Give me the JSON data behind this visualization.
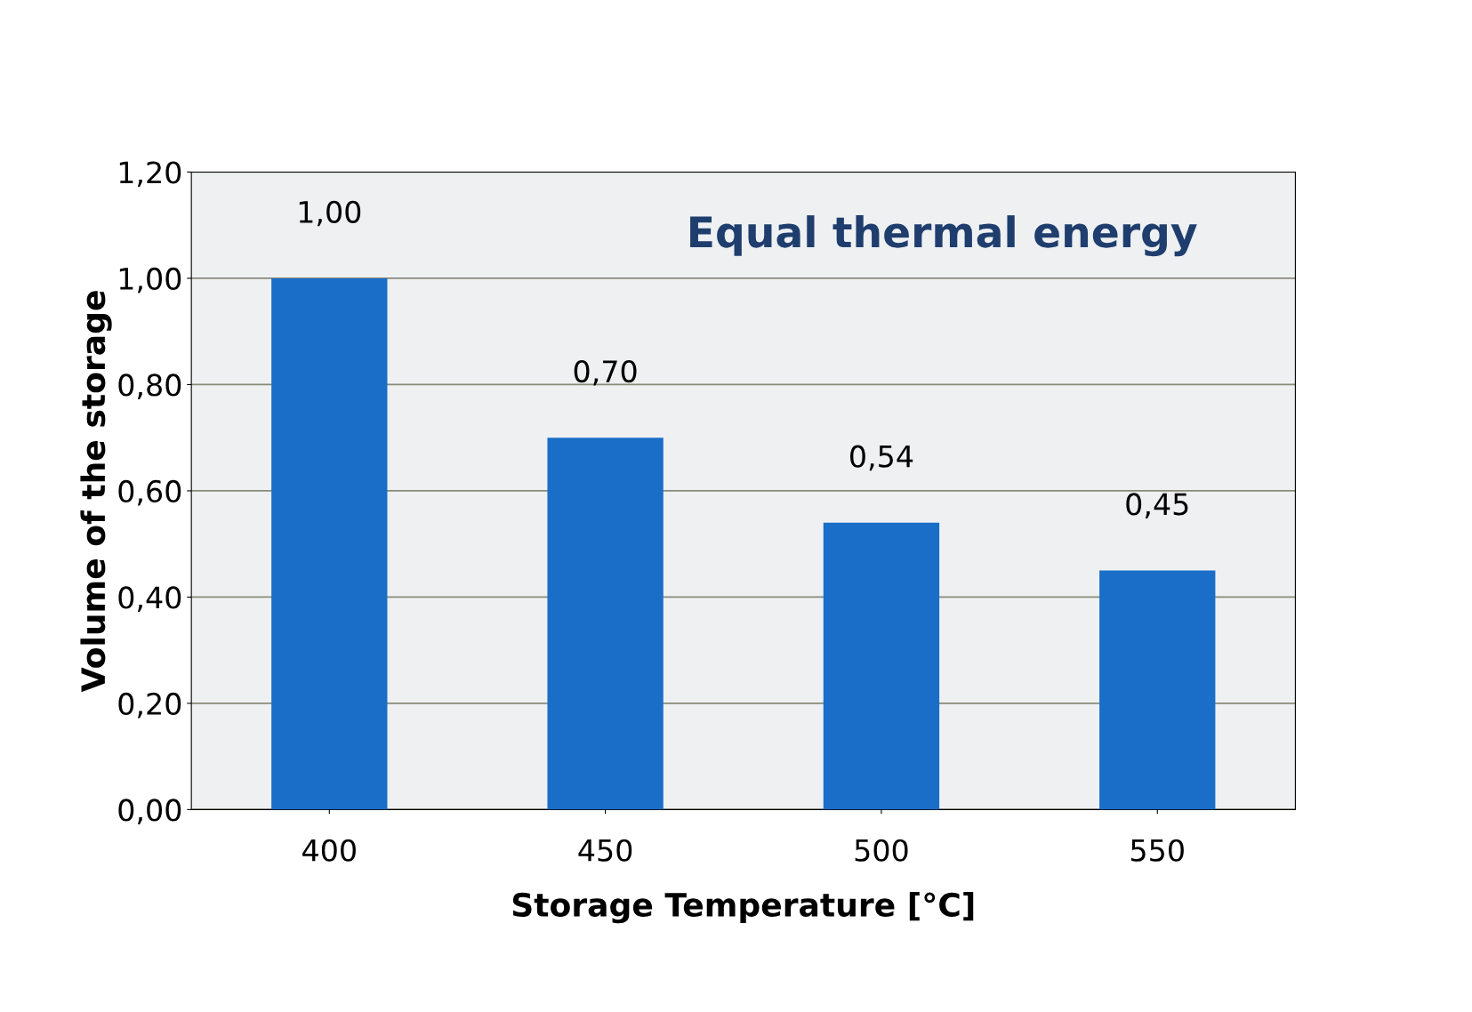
{
  "chart_data": {
    "type": "bar",
    "title": "Equal thermal energy",
    "xlabel": "Storage Temperature [°C]",
    "ylabel": "Volume of the storage",
    "categories": [
      "400",
      "450",
      "500",
      "550"
    ],
    "values": [
      1.0,
      0.7,
      0.54,
      0.45
    ],
    "value_labels": [
      "1,00",
      "0,70",
      "0,54",
      "0,45"
    ],
    "color": "#1a6ec8",
    "ylim": [
      0,
      1.2
    ],
    "yticks": [
      {
        "value": 0,
        "label": "0,00"
      },
      {
        "value": 0.2,
        "label": "0,20"
      },
      {
        "value": 0.4,
        "label": "0,40"
      },
      {
        "value": 0.6,
        "label": "0,60"
      },
      {
        "value": 0.8,
        "label": "0,80"
      },
      {
        "value": 1.0,
        "label": "1,00"
      },
      {
        "value": 1.2,
        "label": "1,20"
      }
    ],
    "grid": "y",
    "legend": false
  }
}
